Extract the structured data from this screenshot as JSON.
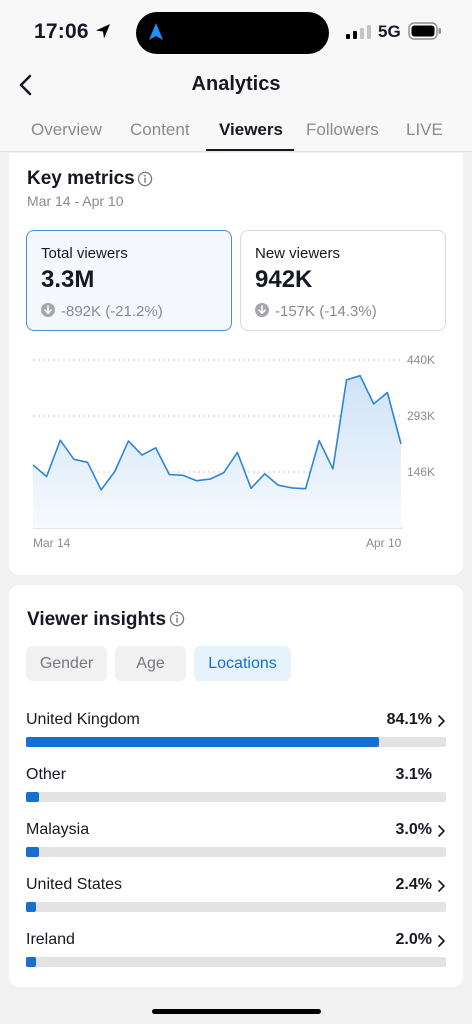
{
  "status_bar": {
    "time": "17:06",
    "network": "5G"
  },
  "header": {
    "title": "Analytics",
    "tabs": [
      {
        "label": "Overview",
        "active": false
      },
      {
        "label": "Content",
        "active": false
      },
      {
        "label": "Viewers",
        "active": true
      },
      {
        "label": "Followers",
        "active": false
      },
      {
        "label": "LIVE",
        "active": false
      }
    ]
  },
  "key_metrics": {
    "title": "Key metrics",
    "date_range": "Mar 14 - Apr 10",
    "cards": [
      {
        "label": "Total viewers",
        "value": "3.3M",
        "delta": "-892K (-21.2%)",
        "selected": true
      },
      {
        "label": "New viewers",
        "value": "942K",
        "delta": "-157K (-14.3%)",
        "selected": false
      }
    ]
  },
  "chart_data": {
    "type": "area",
    "x_start_label": "Mar 14",
    "x_end_label": "Apr 10",
    "ytick_labels": [
      "440K",
      "293K",
      "146K"
    ],
    "ylim": [
      0,
      440
    ],
    "values": [
      165,
      135,
      230,
      180,
      172,
      100,
      148,
      228,
      191,
      210,
      140,
      138,
      124,
      128,
      145,
      198,
      104,
      142,
      112,
      105,
      103,
      229,
      155,
      388,
      399,
      325,
      355,
      220
    ],
    "color": "#2d86d6"
  },
  "viewer_insights": {
    "title": "Viewer insights",
    "filters": [
      {
        "label": "Gender",
        "active": false
      },
      {
        "label": "Age",
        "active": false
      },
      {
        "label": "Locations",
        "active": true
      }
    ],
    "locations": [
      {
        "name": "United Kingdom",
        "percent": "84.1%",
        "value": 84.1,
        "chevron": true
      },
      {
        "name": "Other",
        "percent": "3.1%",
        "value": 3.1,
        "chevron": false
      },
      {
        "name": "Malaysia",
        "percent": "3.0%",
        "value": 3.0,
        "chevron": true
      },
      {
        "name": "United States",
        "percent": "2.4%",
        "value": 2.4,
        "chevron": true
      },
      {
        "name": "Ireland",
        "percent": "2.0%",
        "value": 2.0,
        "chevron": true
      }
    ]
  }
}
